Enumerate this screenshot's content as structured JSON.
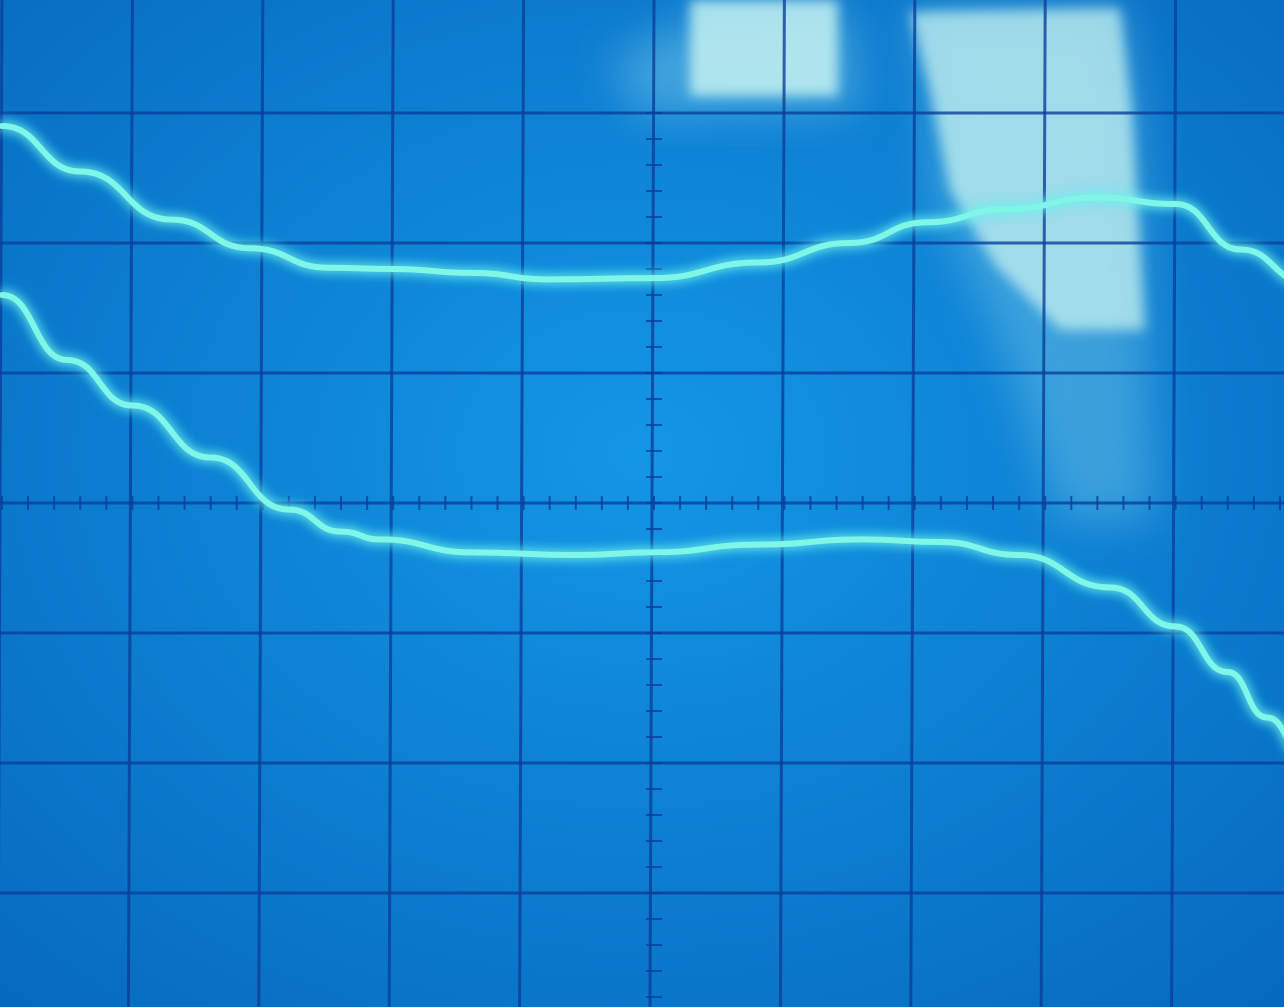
{
  "scope": {
    "screen_color": "#0b82da",
    "screen_color_dark": "#0669bf",
    "graticule_color": "#0a3f9a",
    "trace_color": "#7ff6e8",
    "trace_glow_color": "#35e6ea",
    "glare_color": "#c8f4f2"
  },
  "graticule": {
    "divisions_x": 10,
    "divisions_y": 8,
    "minor_ticks_per_division": 5
  },
  "traces": [
    {
      "name": "",
      "points": [
        [
          0,
          6.9
        ],
        [
          0.6,
          6.55
        ],
        [
          1.3,
          6.18
        ],
        [
          1.9,
          5.96
        ],
        [
          2.5,
          5.81
        ],
        [
          3.0,
          5.8
        ],
        [
          3.6,
          5.77
        ],
        [
          4.2,
          5.72
        ],
        [
          5.0,
          5.73
        ],
        [
          5.8,
          5.85
        ],
        [
          6.5,
          6.0
        ],
        [
          7.1,
          6.16
        ],
        [
          7.7,
          6.26
        ],
        [
          8.4,
          6.35
        ],
        [
          9.0,
          6.3
        ],
        [
          9.5,
          5.95
        ],
        [
          10.0,
          5.7
        ]
      ]
    },
    {
      "name": "",
      "points": [
        [
          0,
          5.6
        ],
        [
          0.5,
          5.1
        ],
        [
          1.0,
          4.75
        ],
        [
          1.6,
          4.35
        ],
        [
          2.2,
          3.95
        ],
        [
          2.6,
          3.78
        ],
        [
          2.9,
          3.72
        ],
        [
          3.6,
          3.62
        ],
        [
          4.4,
          3.6
        ],
        [
          5.0,
          3.62
        ],
        [
          5.8,
          3.68
        ],
        [
          6.6,
          3.72
        ],
        [
          7.2,
          3.7
        ],
        [
          7.8,
          3.6
        ],
        [
          8.5,
          3.35
        ],
        [
          9.0,
          3.05
        ],
        [
          9.4,
          2.7
        ],
        [
          9.7,
          2.35
        ],
        [
          10.0,
          2.05
        ]
      ]
    }
  ]
}
